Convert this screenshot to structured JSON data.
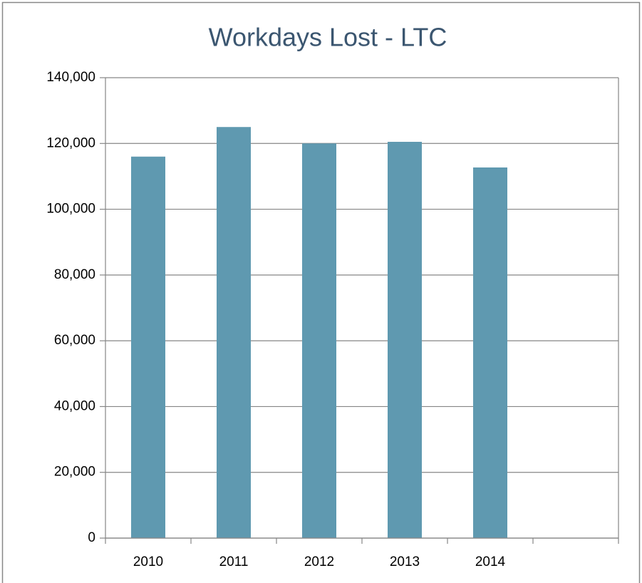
{
  "chart_data": {
    "type": "bar",
    "title": "Workdays Lost - LTC",
    "categories": [
      "2010",
      "2011",
      "2012",
      "2013",
      "2014",
      null
    ],
    "values": [
      116000,
      125000,
      120000,
      120500,
      112700,
      null
    ],
    "color": "#5f99b0",
    "ylim": [
      0,
      140000
    ],
    "yticks": [
      0,
      {
        "value": 20000,
        "label": "20,000"
      },
      {
        "value": 40000,
        "label": "40,000"
      },
      {
        "value": 60000,
        "label": "60,000"
      },
      {
        "value": 80000,
        "label": "80,000"
      },
      {
        "value": 100000,
        "label": "100,000"
      },
      {
        "value": 120000,
        "label": "120,000"
      },
      {
        "value": 140000,
        "label": "140,000"
      }
    ],
    "grid": true
  }
}
